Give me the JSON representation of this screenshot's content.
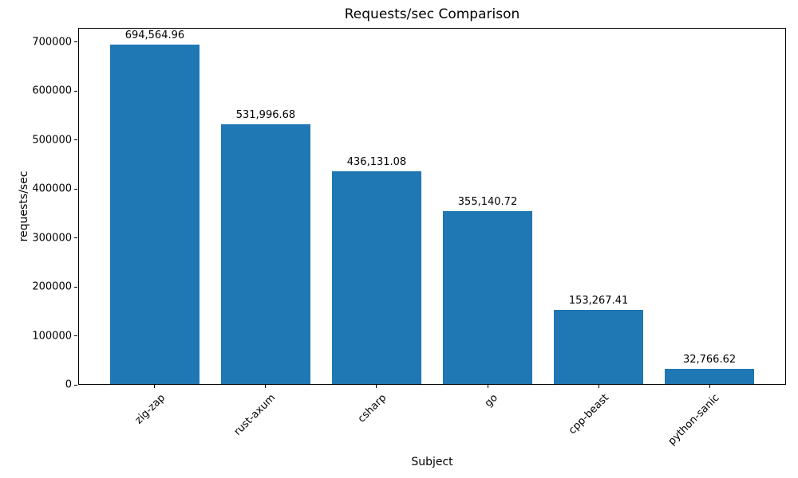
{
  "chart_data": {
    "type": "bar",
    "title": "Requests/sec Comparison",
    "xlabel": "Subject",
    "ylabel": "requests/sec",
    "categories": [
      "zig-zap",
      "rust-axum",
      "csharp",
      "go",
      "cpp-beast",
      "python-sanic"
    ],
    "values": [
      694564.96,
      531996.68,
      436131.08,
      355140.72,
      153267.41,
      32766.62
    ],
    "value_labels": [
      "694,564.96",
      "531,996.68",
      "436,131.08",
      "355,140.72",
      "153,267.41",
      "32,766.62"
    ],
    "bar_color": "#1f77b4",
    "ylim": [
      0,
      729293
    ],
    "yticks": [
      0,
      100000,
      200000,
      300000,
      400000,
      500000,
      600000,
      700000
    ],
    "ytick_labels": [
      "0",
      "100000",
      "200000",
      "300000",
      "400000",
      "500000",
      "600000",
      "700000"
    ],
    "xlim": [
      -0.69,
      5.69
    ],
    "bar_width": 0.8,
    "x_tick_rotation": 45,
    "grid": false,
    "legend_position": "none"
  }
}
